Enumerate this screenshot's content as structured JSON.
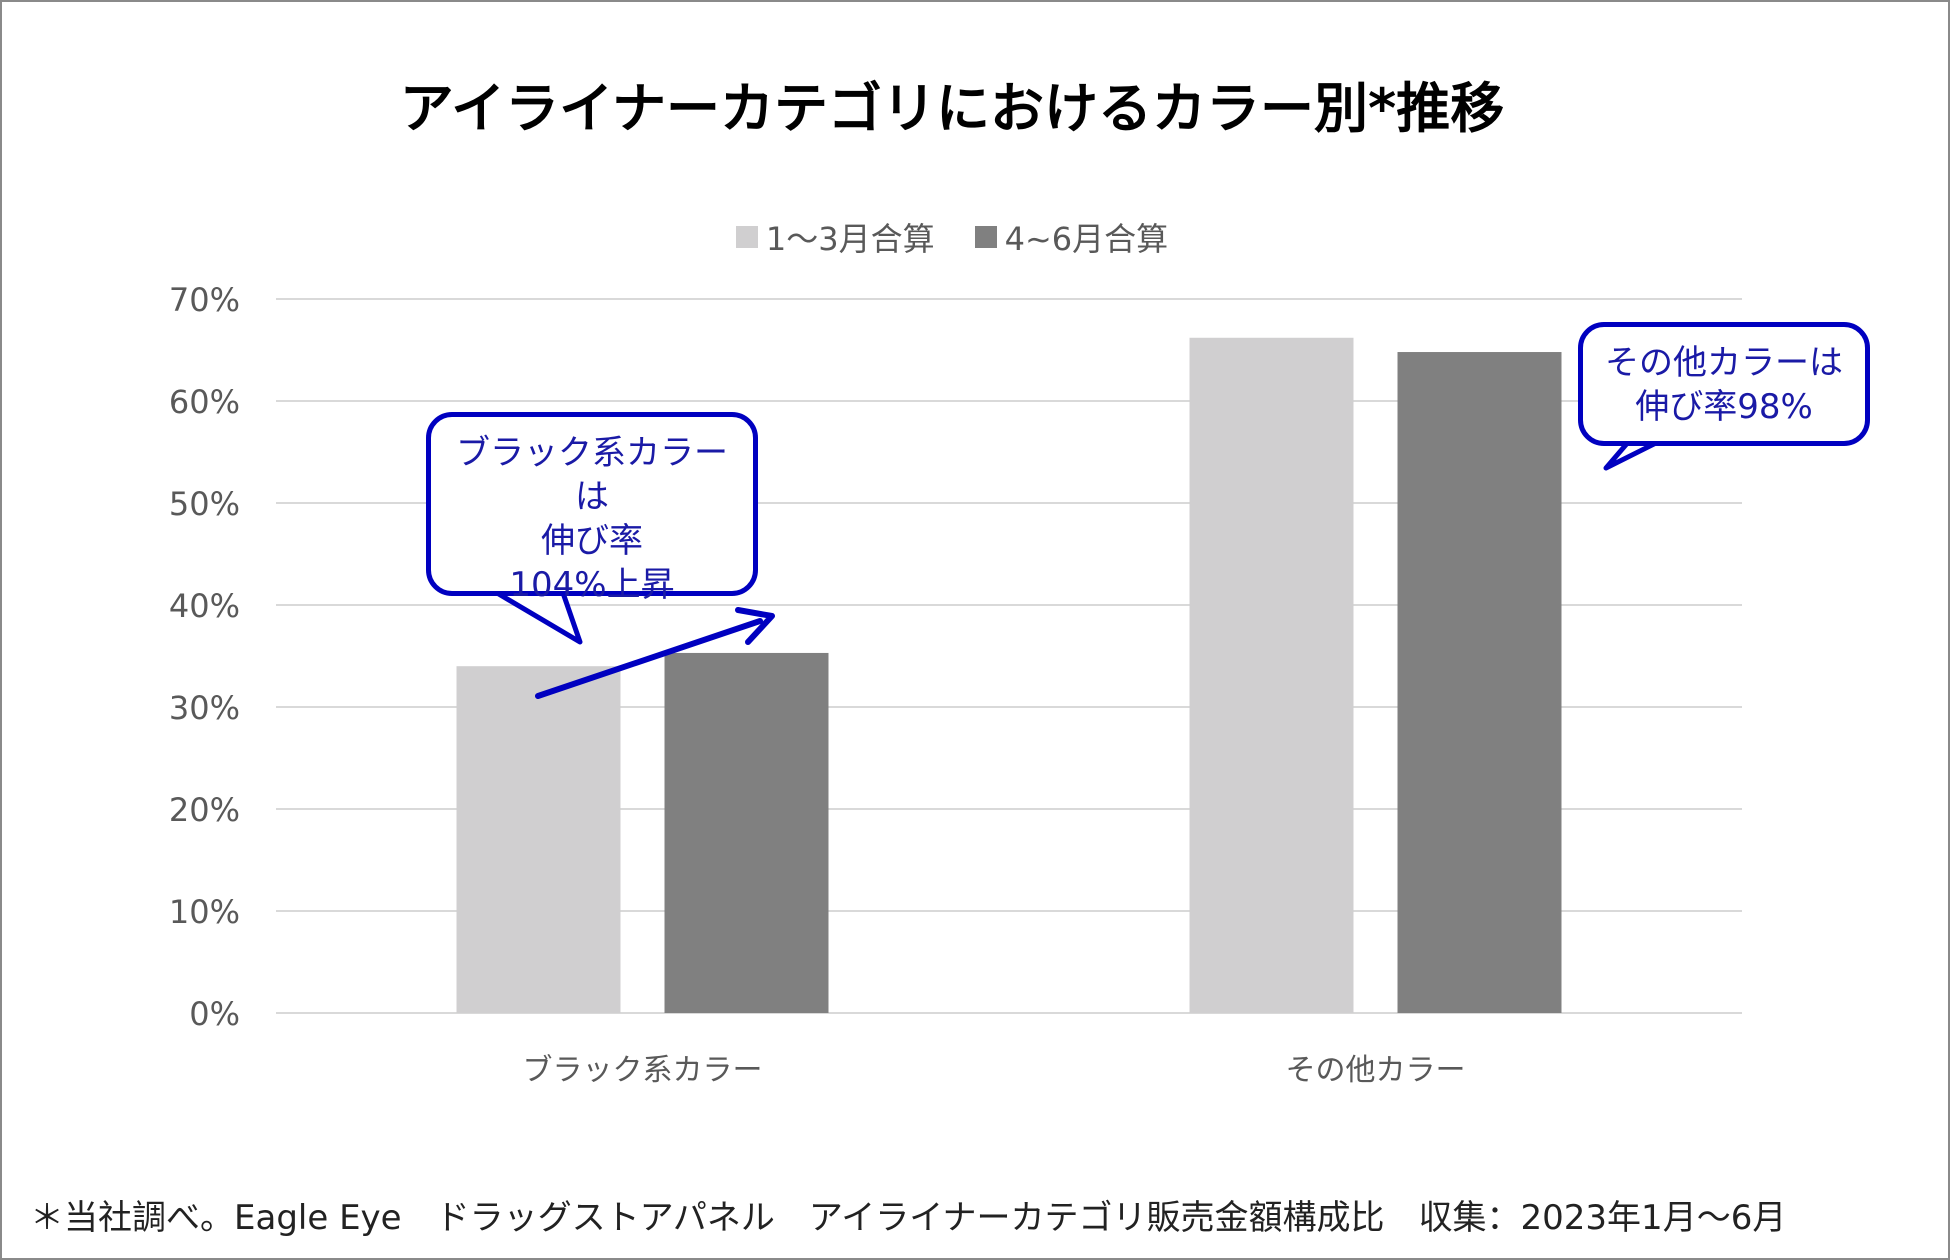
{
  "chart_data": {
    "type": "bar",
    "title": "アイライナーカテゴリにおけるカラー別*推移",
    "categories": [
      "ブラック系カラー",
      "その他カラー"
    ],
    "series": [
      {
        "name": "1～3月合算",
        "values": [
          34,
          66.2
        ],
        "color": "#d0cfd0"
      },
      {
        "name": "4~6月合算",
        "values": [
          35.3,
          64.8
        ],
        "color": "#808080"
      }
    ],
    "ylim": [
      0,
      70
    ],
    "yticks": [
      "0%",
      "10%",
      "20%",
      "30%",
      "40%",
      "50%",
      "60%",
      "70%"
    ],
    "grid": true,
    "legend": "top-center",
    "annotations": [
      {
        "text_lines": [
          "ブラック系カラーは",
          "伸び率",
          "104%上昇"
        ],
        "color": "#0000c0"
      },
      {
        "text_lines": [
          "その他カラーは",
          "伸び率98%"
        ],
        "color": "#0000c0"
      }
    ],
    "arrow_color": "#0000c0"
  },
  "footnote": "＊当社調べ。Eagle Eye　ドラッグストアパネル　アイライナーカテゴリ販売金額構成比　収集：2023年1月～6月"
}
